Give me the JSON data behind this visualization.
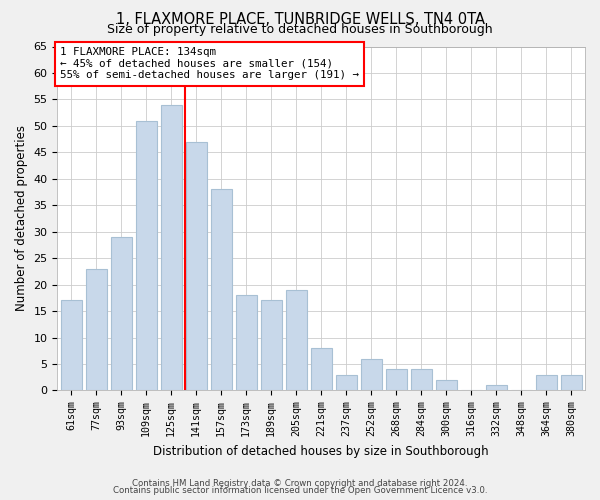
{
  "title": "1, FLAXMORE PLACE, TUNBRIDGE WELLS, TN4 0TA",
  "subtitle": "Size of property relative to detached houses in Southborough",
  "xlabel": "Distribution of detached houses by size in Southborough",
  "ylabel": "Number of detached properties",
  "bar_color": "#c8d8ea",
  "bar_edge_color": "#a8c0d4",
  "categories": [
    "61sqm",
    "77sqm",
    "93sqm",
    "109sqm",
    "125sqm",
    "141sqm",
    "157sqm",
    "173sqm",
    "189sqm",
    "205sqm",
    "221sqm",
    "237sqm",
    "252sqm",
    "268sqm",
    "284sqm",
    "300sqm",
    "316sqm",
    "332sqm",
    "348sqm",
    "364sqm",
    "380sqm"
  ],
  "values": [
    17,
    23,
    29,
    51,
    54,
    47,
    38,
    18,
    17,
    19,
    8,
    3,
    6,
    4,
    4,
    2,
    0,
    1,
    0,
    3,
    3
  ],
  "ylim": [
    0,
    65
  ],
  "yticks": [
    0,
    5,
    10,
    15,
    20,
    25,
    30,
    35,
    40,
    45,
    50,
    55,
    60,
    65
  ],
  "vline_label": "1 FLAXMORE PLACE: 134sqm",
  "annotation_line1": "← 45% of detached houses are smaller (154)",
  "annotation_line2": "55% of semi-detached houses are larger (191) →",
  "footer1": "Contains HM Land Registry data © Crown copyright and database right 2024.",
  "footer2": "Contains public sector information licensed under the Open Government Licence v3.0.",
  "background_color": "#f0f0f0",
  "plot_background_color": "#ffffff",
  "grid_color": "#cccccc"
}
